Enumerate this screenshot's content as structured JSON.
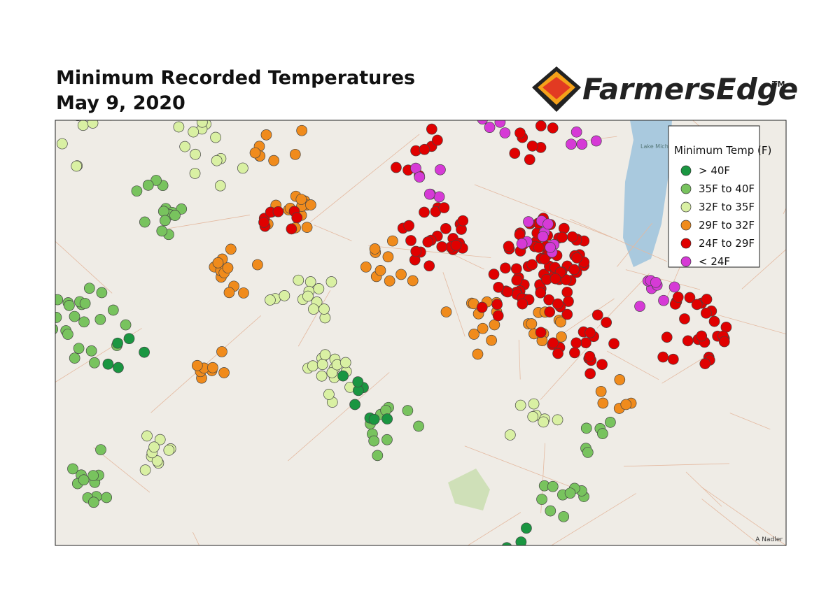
{
  "header": {
    "title_lines": [
      "Minimum Recorded Temperatures",
      "May 9, 2020"
    ]
  },
  "logo": {
    "name": "FarmersEdge",
    "mark": "TM"
  },
  "map": {
    "lake_label": "Lake Michigan",
    "credit": "A Nadler"
  },
  "legend": {
    "title": "Minimum Temp (F)",
    "items": [
      {
        "label": "> 40F",
        "color": "#1a9641"
      },
      {
        "label": "35F to 40F",
        "color": "#78c35e"
      },
      {
        "label": "32F to 35F",
        "color": "#d9f0a3"
      },
      {
        "label": "29F to 32F",
        "color": "#f08b1c"
      },
      {
        "label": "24F to 29F",
        "color": "#e00000"
      },
      {
        "label": "< 24F",
        "color": "#d63ad6"
      }
    ]
  }
}
